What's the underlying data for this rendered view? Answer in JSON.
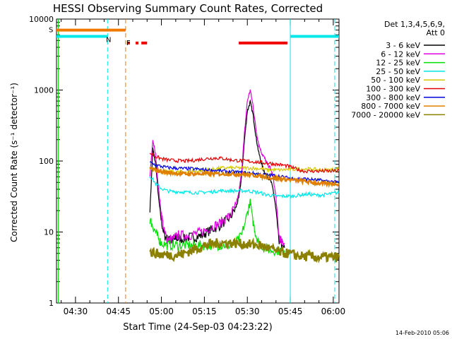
{
  "chart_data": {
    "type": "line",
    "title": "HESSI Observing Summary Count Rates, Corrected",
    "xlabel": "Start Time (24-Sep-03 04:23:22)",
    "ylabel": "Corrected Count Rate (s⁻¹ detector⁻¹)",
    "y_scale": "log",
    "ylim": [
      1,
      10000
    ],
    "xlim_minutes": [
      263.37,
      362.0
    ],
    "x_ticks": [
      {
        "label": "04:30",
        "minute": 270
      },
      {
        "label": "04:45",
        "minute": 285
      },
      {
        "label": "05:00",
        "minute": 300
      },
      {
        "label": "05:15",
        "minute": 315
      },
      {
        "label": "05:30",
        "minute": 330
      },
      {
        "label": "05:45",
        "minute": 345
      },
      {
        "label": "06:00",
        "minute": 360
      }
    ],
    "y_ticks": [
      {
        "label": "1",
        "value": 1
      },
      {
        "label": "10",
        "value": 10
      },
      {
        "label": "100",
        "value": 100
      },
      {
        "label": "1000",
        "value": 1000
      },
      {
        "label": "10000",
        "value": 10000
      }
    ],
    "legend": {
      "placement": "top-right-outside",
      "header": [
        "Det 1,3,4,5,6,9,",
        "Att 0"
      ]
    },
    "footer": "14-Feb-2010 05:06",
    "series": [
      {
        "name": "3 - 6 keV",
        "color": "#000000",
        "x": [
          296,
          297,
          298,
          299,
          300,
          301,
          302,
          303,
          304,
          305,
          306,
          308,
          310,
          312,
          314,
          316,
          318,
          320,
          322,
          324,
          326,
          327,
          328,
          329,
          330,
          331,
          332,
          333,
          334,
          335,
          336,
          337,
          338,
          339,
          340,
          341,
          342,
          343
        ],
        "y": [
          20,
          150,
          90,
          30,
          14,
          9,
          8,
          7.5,
          7.5,
          8,
          8,
          8,
          8.5,
          8.5,
          9,
          10,
          11,
          12,
          14,
          16,
          22,
          30,
          60,
          200,
          500,
          680,
          450,
          220,
          130,
          90,
          70,
          60,
          55,
          40,
          20,
          8,
          6,
          6
        ]
      },
      {
        "name": "6 - 12 keV",
        "color": "#e000e0",
        "x": [
          296,
          297,
          298,
          299,
          300,
          301,
          302,
          303,
          304,
          305,
          306,
          308,
          310,
          312,
          314,
          316,
          318,
          320,
          322,
          324,
          326,
          327,
          328,
          329,
          330,
          331,
          332,
          333,
          334,
          335,
          336,
          337,
          338,
          339,
          340,
          341,
          342,
          343
        ],
        "y": [
          60,
          200,
          120,
          40,
          18,
          10,
          8,
          8,
          8,
          8.5,
          9,
          9,
          9,
          9.5,
          10,
          11,
          12,
          13,
          15,
          17,
          24,
          35,
          70,
          250,
          700,
          1000,
          600,
          280,
          170,
          130,
          110,
          90,
          80,
          60,
          30,
          9,
          7,
          7
        ]
      },
      {
        "name": "12 - 25 keV",
        "color": "#00e000",
        "x": [
          296,
          297,
          298,
          299,
          300,
          302,
          304,
          306,
          308,
          310,
          312,
          314,
          316,
          318,
          320,
          322,
          324,
          326,
          328,
          330,
          331,
          332,
          333,
          334,
          336,
          338,
          340,
          342,
          343
        ],
        "y": [
          15,
          12,
          10,
          8,
          7,
          6.5,
          6.5,
          6.5,
          6.5,
          6.5,
          6.5,
          6.5,
          6.5,
          6.5,
          6.5,
          6.5,
          6.5,
          7,
          9,
          18,
          28,
          14,
          9,
          7,
          6,
          5.5,
          5.5,
          5.5,
          5.5
        ]
      },
      {
        "name": "25 - 50 keV",
        "color": "#00e8e8",
        "x": [
          296,
          298,
          300,
          302,
          304,
          306,
          308,
          310,
          312,
          314,
          316,
          318,
          320,
          322,
          324,
          326,
          328,
          330,
          332,
          334,
          336,
          338,
          340,
          342,
          344,
          346,
          348,
          350,
          352,
          354,
          356,
          358,
          360,
          362
        ],
        "y": [
          62,
          48,
          41,
          38,
          37,
          37,
          36.5,
          36,
          36,
          36,
          36.5,
          37,
          38,
          38,
          38,
          38,
          38,
          38,
          37,
          36,
          34,
          33,
          32,
          32,
          32,
          32,
          33,
          34,
          34,
          33,
          33,
          34,
          35,
          36
        ]
      },
      {
        "name": "50 - 100 keV",
        "color": "#d4c800",
        "x": [
          296,
          298,
          300,
          302,
          304,
          306,
          308,
          310,
          312,
          314,
          316,
          318,
          320,
          322,
          324,
          326,
          328,
          330,
          332,
          334,
          336,
          338,
          340,
          342,
          344,
          346,
          348,
          350,
          352,
          354,
          356,
          358,
          360,
          362
        ],
        "y": [
          80,
          75,
          72,
          70,
          70,
          70,
          70,
          71,
          72,
          73,
          75,
          77,
          79,
          80,
          80,
          80,
          80,
          80,
          79,
          78,
          76,
          75,
          75,
          75,
          76,
          76,
          77,
          77,
          77,
          76,
          75,
          75,
          76,
          77
        ]
      },
      {
        "name": "100 - 300 keV",
        "color": "#e00000",
        "x": [
          296,
          298,
          300,
          302,
          304,
          306,
          308,
          310,
          312,
          314,
          316,
          318,
          320,
          322,
          324,
          326,
          328,
          330,
          332,
          334,
          336,
          338,
          340,
          342,
          344,
          346,
          348,
          350,
          352,
          354,
          356,
          358,
          360,
          362
        ],
        "y": [
          130,
          115,
          108,
          104,
          102,
          101,
          100,
          101,
          103,
          106,
          108,
          110,
          110,
          108,
          104,
          102,
          101,
          100,
          98,
          96,
          94,
          93,
          90,
          88,
          85,
          80,
          75,
          72,
          72,
          72,
          72,
          72,
          72,
          74
        ]
      },
      {
        "name": "300 - 800 keV",
        "color": "#0000e0",
        "x": [
          296,
          298,
          300,
          302,
          304,
          306,
          308,
          310,
          312,
          314,
          316,
          318,
          320,
          322,
          324,
          326,
          328,
          330,
          332,
          334,
          336,
          338,
          340,
          342,
          344,
          346,
          348,
          350,
          352,
          354,
          356,
          358,
          360,
          362
        ],
        "y": [
          95,
          88,
          84,
          81,
          80,
          79,
          78,
          78,
          77,
          76,
          75,
          74,
          73,
          72,
          71,
          70,
          69,
          68,
          67,
          66,
          64,
          63,
          62,
          60,
          58,
          57,
          56,
          56,
          55,
          54,
          53,
          52,
          51,
          50
        ]
      },
      {
        "name": "800 - 7000 keV",
        "color": "#e08000",
        "x": [
          296,
          298,
          300,
          302,
          304,
          306,
          308,
          310,
          312,
          314,
          316,
          318,
          320,
          322,
          324,
          326,
          328,
          330,
          332,
          334,
          336,
          338,
          340,
          342,
          344,
          346,
          348,
          350,
          352,
          354,
          356,
          358,
          360,
          362
        ],
        "y": [
          80,
          74,
          71,
          69,
          68,
          67,
          66,
          66,
          66,
          66,
          66,
          66,
          66,
          66,
          66,
          65,
          65,
          64,
          63,
          62,
          60,
          58,
          57,
          56,
          55,
          54,
          53,
          52,
          50,
          49,
          48,
          48,
          48,
          48
        ]
      },
      {
        "name": "7000 - 20000 keV",
        "color": "#8c8000",
        "x": [
          296,
          298,
          300,
          302,
          304,
          306,
          308,
          310,
          312,
          314,
          316,
          318,
          320,
          322,
          324,
          326,
          328,
          330,
          332,
          334,
          336,
          338,
          340,
          342,
          344,
          346,
          348,
          350,
          352,
          354,
          356,
          358,
          360,
          362
        ],
        "y": [
          5.2,
          5.0,
          4.8,
          4.8,
          4.7,
          4.8,
          5.0,
          5.4,
          5.8,
          6.2,
          6.6,
          6.8,
          7.0,
          7.0,
          7.0,
          6.9,
          6.8,
          6.7,
          6.6,
          6.5,
          6.2,
          5.8,
          5.4,
          5.1,
          5.0,
          4.8,
          4.6,
          4.5,
          4.5,
          4.4,
          4.4,
          4.4,
          4.4,
          4.4
        ]
      }
    ],
    "flag_bars": [
      {
        "label": "S",
        "color": "#f07800",
        "x": [
          263.37,
          287.5
        ],
        "y": 7000
      },
      {
        "label": "N",
        "color": "#00e8e8",
        "x": [
          263.37,
          281.2
        ],
        "y": 5700
      },
      {
        "label": "",
        "color": "#00e8e8",
        "x": [
          345.0,
          362.0
        ],
        "y": 5700
      },
      {
        "label": "F",
        "color": "#f00000",
        "x": [
          288.0,
          289.0
        ],
        "y": 4600
      },
      {
        "label": "",
        "color": "#f00000",
        "x": [
          291.0,
          292.0
        ],
        "y": 4600
      },
      {
        "label": "",
        "color": "#f00000",
        "x": [
          293.0,
          295.0
        ],
        "y": 4600
      },
      {
        "label": "",
        "color": "#f00000",
        "x": [
          327.0,
          344.0
        ],
        "y": 4600
      }
    ],
    "vertical_markers": [
      {
        "x": 264.0,
        "color": "#00e000",
        "style": "solid"
      },
      {
        "x": 281.2,
        "color": "#00e8e8",
        "style": "dashed"
      },
      {
        "x": 287.5,
        "color": "#f07800",
        "style": "dashed"
      },
      {
        "x": 345.0,
        "color": "#00e8e8",
        "style": "solid"
      },
      {
        "x": 360.5,
        "color": "#00e8e8",
        "style": "dashed"
      }
    ]
  }
}
